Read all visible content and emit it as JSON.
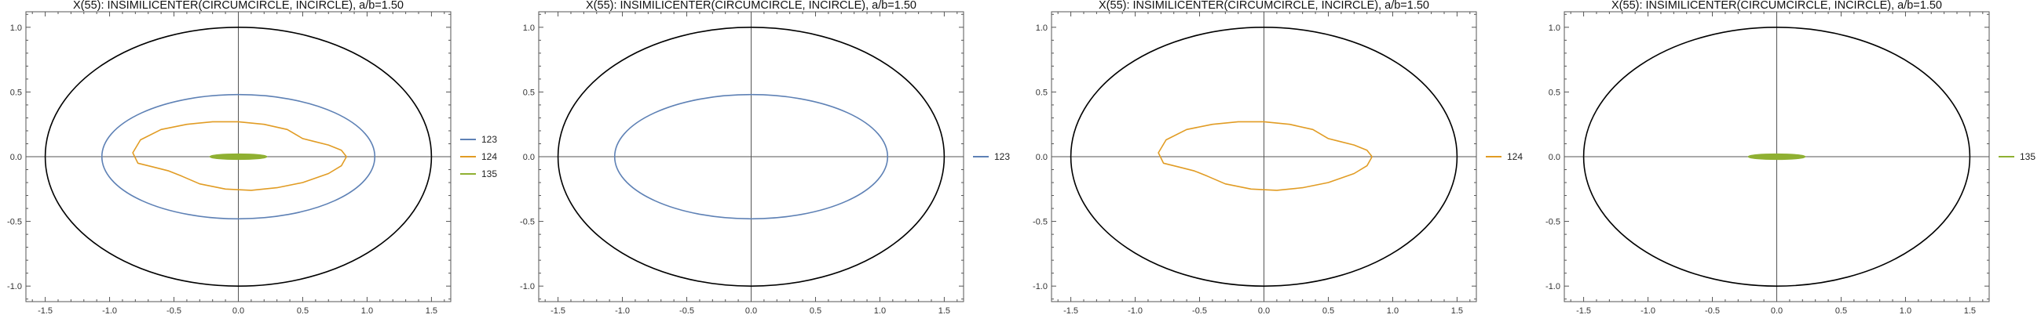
{
  "colors": {
    "frame": "#555555",
    "axis": "#555555",
    "boundary": "#000000",
    "s123": "#5E81B5",
    "s124": "#E19C24",
    "s135": "#8FB032"
  },
  "chart_data": [
    {
      "type": "line",
      "title": "X(55): INSIMILICENTER(CIRCUMCIRCLE, INCIRCLE), a/b=1.50",
      "xlim": [
        -1.65,
        1.65
      ],
      "ylim": [
        -1.12,
        1.12
      ],
      "xticks": [
        "-1.5",
        "-1.0",
        "-0.5",
        "0.0",
        "0.5",
        "1.0",
        "1.5"
      ],
      "yticks": [
        "-1.0",
        "-0.5",
        "0.0",
        "0.5",
        "1.0"
      ],
      "boundary": {
        "a": 1.5,
        "b": 1.0
      },
      "legend_position": "right",
      "series": [
        {
          "name": "123",
          "color": "#5E81B5",
          "shape": "ellipse",
          "cx": 0,
          "cy": 0,
          "rx": 1.06,
          "ry": 0.48
        },
        {
          "name": "124",
          "color": "#E19C24",
          "shape": "curve",
          "points": [
            [
              -0.82,
              0.03
            ],
            [
              -0.76,
              0.13
            ],
            [
              -0.6,
              0.21
            ],
            [
              -0.4,
              0.25
            ],
            [
              -0.2,
              0.27
            ],
            [
              0.0,
              0.27
            ],
            [
              0.2,
              0.25
            ],
            [
              0.38,
              0.21
            ],
            [
              0.5,
              0.14
            ],
            [
              0.58,
              0.12
            ],
            [
              0.7,
              0.09
            ],
            [
              0.8,
              0.05
            ],
            [
              0.84,
              0.0
            ],
            [
              0.8,
              -0.07
            ],
            [
              0.7,
              -0.13
            ],
            [
              0.5,
              -0.2
            ],
            [
              0.3,
              -0.24
            ],
            [
              0.1,
              -0.26
            ],
            [
              -0.1,
              -0.25
            ],
            [
              -0.3,
              -0.21
            ],
            [
              -0.44,
              -0.15
            ],
            [
              -0.54,
              -0.11
            ],
            [
              -0.66,
              -0.08
            ],
            [
              -0.78,
              -0.05
            ],
            [
              -0.82,
              0.03
            ]
          ]
        },
        {
          "name": "135",
          "color": "#8FB032",
          "shape": "ellipse",
          "cx": 0,
          "cy": 0,
          "rx": 0.22,
          "ry": 0.02
        }
      ]
    },
    {
      "type": "line",
      "title": "X(55): INSIMILICENTER(CIRCUMCIRCLE, INCIRCLE), a/b=1.50",
      "xlim": [
        -1.65,
        1.65
      ],
      "ylim": [
        -1.12,
        1.12
      ],
      "xticks": [
        "-1.5",
        "-1.0",
        "-0.5",
        "0.0",
        "0.5",
        "1.0",
        "1.5"
      ],
      "yticks": [
        "-1.0",
        "-0.5",
        "0.0",
        "0.5",
        "1.0"
      ],
      "boundary": {
        "a": 1.5,
        "b": 1.0
      },
      "legend_position": "right",
      "series": [
        {
          "name": "123",
          "color": "#5E81B5",
          "shape": "ellipse",
          "cx": 0,
          "cy": 0,
          "rx": 1.06,
          "ry": 0.48
        }
      ]
    },
    {
      "type": "line",
      "title": "X(55): INSIMILICENTER(CIRCUMCIRCLE, INCIRCLE), a/b=1.50",
      "xlim": [
        -1.65,
        1.65
      ],
      "ylim": [
        -1.12,
        1.12
      ],
      "xticks": [
        "-1.5",
        "-1.0",
        "-0.5",
        "0.0",
        "0.5",
        "1.0",
        "1.5"
      ],
      "yticks": [
        "-1.0",
        "-0.5",
        "0.0",
        "0.5",
        "1.0"
      ],
      "boundary": {
        "a": 1.5,
        "b": 1.0
      },
      "legend_position": "right",
      "series": [
        {
          "name": "124",
          "color": "#E19C24",
          "shape": "curve",
          "points": [
            [
              -0.82,
              0.03
            ],
            [
              -0.76,
              0.13
            ],
            [
              -0.6,
              0.21
            ],
            [
              -0.4,
              0.25
            ],
            [
              -0.2,
              0.27
            ],
            [
              0.0,
              0.27
            ],
            [
              0.2,
              0.25
            ],
            [
              0.38,
              0.21
            ],
            [
              0.5,
              0.14
            ],
            [
              0.58,
              0.12
            ],
            [
              0.7,
              0.09
            ],
            [
              0.8,
              0.05
            ],
            [
              0.84,
              0.0
            ],
            [
              0.8,
              -0.07
            ],
            [
              0.7,
              -0.13
            ],
            [
              0.5,
              -0.2
            ],
            [
              0.3,
              -0.24
            ],
            [
              0.1,
              -0.26
            ],
            [
              -0.1,
              -0.25
            ],
            [
              -0.3,
              -0.21
            ],
            [
              -0.44,
              -0.15
            ],
            [
              -0.54,
              -0.11
            ],
            [
              -0.66,
              -0.08
            ],
            [
              -0.78,
              -0.05
            ],
            [
              -0.82,
              0.03
            ]
          ]
        }
      ]
    },
    {
      "type": "line",
      "title": "X(55): INSIMILICENTER(CIRCUMCIRCLE, INCIRCLE), a/b=1.50",
      "xlim": [
        -1.65,
        1.65
      ],
      "ylim": [
        -1.12,
        1.12
      ],
      "xticks": [
        "-1.5",
        "-1.0",
        "-0.5",
        "0.0",
        "0.5",
        "1.0",
        "1.5"
      ],
      "yticks": [
        "-1.0",
        "-0.5",
        "0.0",
        "0.5",
        "1.0"
      ],
      "boundary": {
        "a": 1.5,
        "b": 1.0
      },
      "legend_position": "right",
      "series": [
        {
          "name": "135",
          "color": "#8FB032",
          "shape": "ellipse",
          "cx": 0,
          "cy": 0,
          "rx": 0.22,
          "ry": 0.02
        }
      ]
    }
  ]
}
